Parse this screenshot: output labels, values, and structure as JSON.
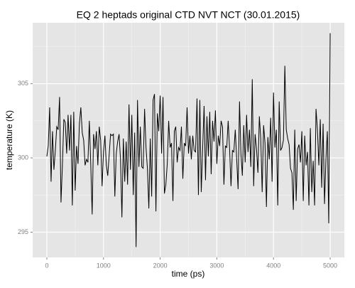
{
  "chart_data": {
    "type": "line",
    "title": "EQ 2 heptads original CTD NVT NCT (30.01.2015)",
    "x_label": "time (ps)",
    "y_label": "temperature (K)",
    "color": "#000000",
    "xlim": [
      -250,
      5250
    ],
    "xticks": [
      0,
      1000,
      2000,
      3000,
      4000,
      5000
    ],
    "x_minor_ticks": [
      500,
      1500,
      2500,
      3500,
      4500
    ],
    "ylim": [
      293.3,
      309.1
    ],
    "yticks": [
      295,
      300,
      305
    ],
    "y_minor_ticks": [
      297.5,
      302.5,
      307.5
    ],
    "grid": true,
    "x": [
      0,
      25,
      50,
      75,
      100,
      125,
      150,
      175,
      200,
      225,
      250,
      275,
      300,
      325,
      350,
      375,
      400,
      425,
      450,
      475,
      500,
      525,
      550,
      575,
      600,
      625,
      650,
      675,
      700,
      725,
      750,
      775,
      800,
      825,
      850,
      875,
      900,
      925,
      950,
      975,
      1000,
      1025,
      1050,
      1075,
      1100,
      1125,
      1150,
      1175,
      1200,
      1225,
      1250,
      1275,
      1300,
      1325,
      1350,
      1375,
      1400,
      1425,
      1450,
      1475,
      1500,
      1525,
      1550,
      1575,
      1600,
      1625,
      1650,
      1675,
      1700,
      1725,
      1750,
      1775,
      1800,
      1825,
      1850,
      1875,
      1900,
      1925,
      1950,
      1975,
      2000,
      2025,
      2050,
      2075,
      2100,
      2125,
      2150,
      2175,
      2200,
      2225,
      2250,
      2275,
      2300,
      2325,
      2350,
      2375,
      2400,
      2425,
      2450,
      2475,
      2500,
      2525,
      2550,
      2575,
      2600,
      2625,
      2650,
      2675,
      2700,
      2725,
      2750,
      2775,
      2800,
      2825,
      2850,
      2875,
      2900,
      2925,
      2950,
      2975,
      3000,
      3025,
      3050,
      3075,
      3100,
      3125,
      3150,
      3175,
      3200,
      3225,
      3250,
      3275,
      3300,
      3325,
      3350,
      3375,
      3400,
      3425,
      3450,
      3475,
      3500,
      3525,
      3550,
      3575,
      3600,
      3625,
      3650,
      3675,
      3700,
      3725,
      3750,
      3775,
      3800,
      3825,
      3850,
      3875,
      3900,
      3925,
      3950,
      3975,
      4000,
      4025,
      4050,
      4075,
      4100,
      4125,
      4150,
      4175,
      4200,
      4225,
      4250,
      4275,
      4300,
      4325,
      4350,
      4375,
      4400,
      4425,
      4450,
      4475,
      4500,
      4525,
      4550,
      4575,
      4600,
      4625,
      4650,
      4675,
      4700,
      4725,
      4750,
      4775,
      4800,
      4825,
      4850,
      4875,
      4900,
      4925,
      4950,
      4975,
      5000
    ],
    "values": [
      300.1,
      300.8,
      303.4,
      298.4,
      301.8,
      299.2,
      300.5,
      302.1,
      301.9,
      304.1,
      297.0,
      299.5,
      302.6,
      302.4,
      300.3,
      302.9,
      300.5,
      302.9,
      296.8,
      303.1,
      297.8,
      300.8,
      299.6,
      302.3,
      303.4,
      301.7,
      301.2,
      299.5,
      299.9,
      299.7,
      302.5,
      299.6,
      296.2,
      301.6,
      300.6,
      301.8,
      299.5,
      302.1,
      301.2,
      298.1,
      300.4,
      301.5,
      299.5,
      298.8,
      300.2,
      301.6,
      301.5,
      301.6,
      297.4,
      300.3,
      301.1,
      301.6,
      299.9,
      296.0,
      301.3,
      298.4,
      301.1,
      298.2,
      303.6,
      299.2,
      302.9,
      297.5,
      301.7,
      294.0,
      303.9,
      299.4,
      302.1,
      299.4,
      299.3,
      303.3,
      300.7,
      299.3,
      296.6,
      301.3,
      297.4,
      303.9,
      304.3,
      296.4,
      303.0,
      301.8,
      304.2,
      300.3,
      304.1,
      297.6,
      298.2,
      299.6,
      302.5,
      300.7,
      301.0,
      297.1,
      301.8,
      302.1,
      299.7,
      300.7,
      300.5,
      302.1,
      298.6,
      301.0,
      300.8,
      303.4,
      300.3,
      301.5,
      299.9,
      301.5,
      300.5,
      300.4,
      304.0,
      297.5,
      303.9,
      297.7,
      300.7,
      303.5,
      298.5,
      302.8,
      300.1,
      303.1,
      298.9,
      302.5,
      301.1,
      303.2,
      299.6,
      301.5,
      300.8,
      302.5,
      302.1,
      298.2,
      300.8,
      300.7,
      302.5,
      300.6,
      298.1,
      300.5,
      300.4,
      301.9,
      299.9,
      297.9,
      303.8,
      300.3,
      298.8,
      302.2,
      299.7,
      302.9,
      300.4,
      301.9,
      299.4,
      305.3,
      298.1,
      301.6,
      300.6,
      299.0,
      302.8,
      301.3,
      297.7,
      302.2,
      301.0,
      296.7,
      301.4,
      299.9,
      302.7,
      298.4,
      304.4,
      300.7,
      301.9,
      296.8,
      303.8,
      300.5,
      300.7,
      301.2,
      306.2,
      301.9,
      301.3,
      300.9,
      299.3,
      299.0,
      296.5,
      301.9,
      297.1,
      300.6,
      300.9,
      299.7,
      301.8,
      297.1,
      301.5,
      299.5,
      300.4,
      296.8,
      302.0,
      297.7,
      299.8,
      296.8,
      303.3,
      301.9,
      299.5,
      302.6,
      298.0,
      302.3,
      296.9,
      299.9,
      301.8,
      295.6,
      308.4
    ]
  }
}
